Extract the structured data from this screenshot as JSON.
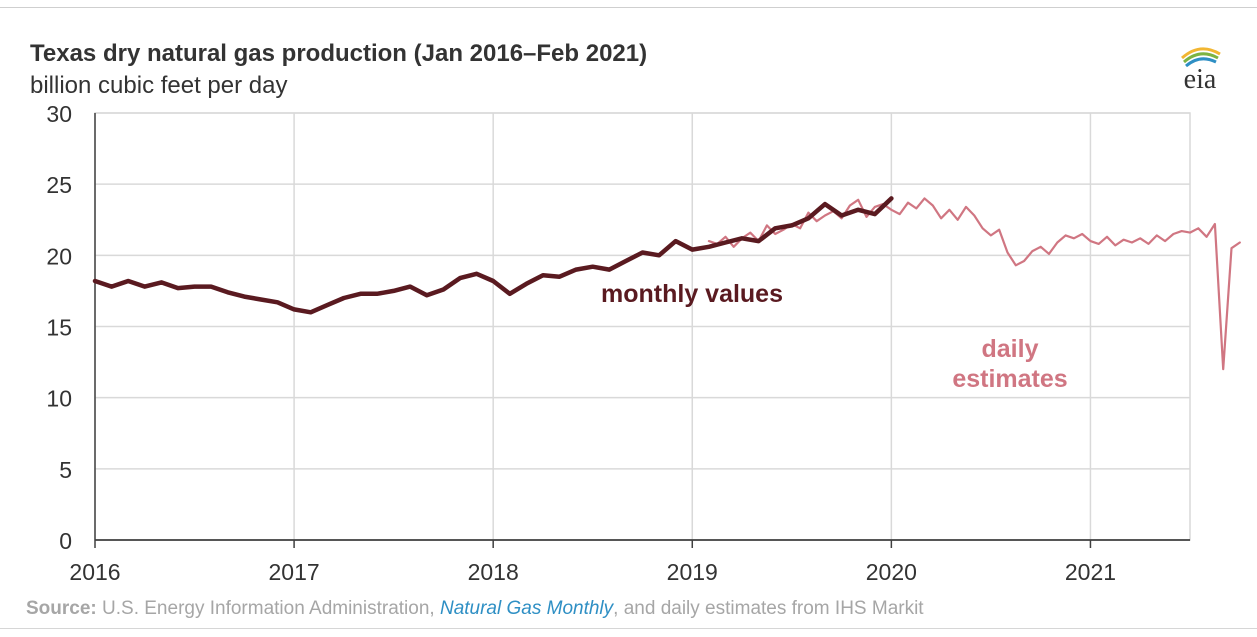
{
  "header": {
    "title": "Texas dry natural gas production (Jan 2016–Feb 2021)",
    "subtitle": "billion cubic feet per day",
    "logo_text": "eia"
  },
  "source": {
    "label": "Source:",
    "text_before": " U.S. Energy Information Administration, ",
    "publication": "Natural Gas Monthly",
    "text_after": ", and daily estimates from IHS Markit"
  },
  "colors": {
    "monthly": "#5a1a20",
    "daily": "#d07682",
    "grid": "#d9d9d9",
    "axis": "#404040",
    "source_link": "#2e8fc4"
  },
  "chart_data": {
    "type": "line",
    "title": "Texas dry natural gas production (Jan 2016–Feb 2021)",
    "ylabel": "billion cubic feet per day",
    "xlabel": "",
    "ylim": [
      0,
      30
    ],
    "yticks": [
      0,
      5,
      10,
      15,
      20,
      25,
      30
    ],
    "xlim": [
      2016,
      2021.5
    ],
    "xticks": [
      "2016",
      "2017",
      "2018",
      "2019",
      "2020",
      "2021"
    ],
    "grid": true,
    "annotations": [
      {
        "text": "monthly values",
        "series": "monthly"
      },
      {
        "text": "daily",
        "series": "daily"
      },
      {
        "text": "estimates",
        "series": "daily"
      }
    ],
    "series": [
      {
        "id": "monthly",
        "start": "2016-01",
        "frequency": "monthly",
        "values": [
          18.2,
          17.8,
          18.2,
          17.8,
          18.1,
          17.7,
          17.8,
          17.8,
          17.4,
          17.1,
          16.9,
          16.7,
          16.2,
          16.0,
          16.5,
          17.0,
          17.3,
          17.3,
          17.5,
          17.8,
          17.2,
          17.6,
          18.4,
          18.7,
          18.2,
          17.3,
          18.0,
          18.6,
          18.5,
          19.0,
          19.2,
          19.0,
          19.6,
          20.2,
          20.0,
          21.0,
          20.4,
          20.6,
          20.9,
          21.2,
          21.0,
          21.9,
          22.1,
          22.6,
          23.6,
          22.8,
          23.2,
          22.9,
          24.0
        ]
      },
      {
        "id": "daily",
        "start": "2019-02",
        "frequency": "semi-monthly",
        "values": [
          21.0,
          20.8,
          21.3,
          20.6,
          21.2,
          21.6,
          21.0,
          22.1,
          21.5,
          21.8,
          22.2,
          21.9,
          23.0,
          22.4,
          22.8,
          23.1,
          22.6,
          23.5,
          23.9,
          22.7,
          23.4,
          23.6,
          23.2,
          22.9,
          23.7,
          23.3,
          24.0,
          23.5,
          22.6,
          23.2,
          22.5,
          23.4,
          22.8,
          21.9,
          21.4,
          21.8,
          20.2,
          19.3,
          19.6,
          20.3,
          20.6,
          20.1,
          20.9,
          21.4,
          21.2,
          21.5,
          21.0,
          20.8,
          21.3,
          20.7,
          21.1,
          20.9,
          21.2,
          20.8,
          21.4,
          21.0,
          21.5,
          21.7,
          21.6,
          21.9,
          21.3,
          22.2,
          12.0,
          20.5,
          20.9
        ]
      }
    ]
  }
}
